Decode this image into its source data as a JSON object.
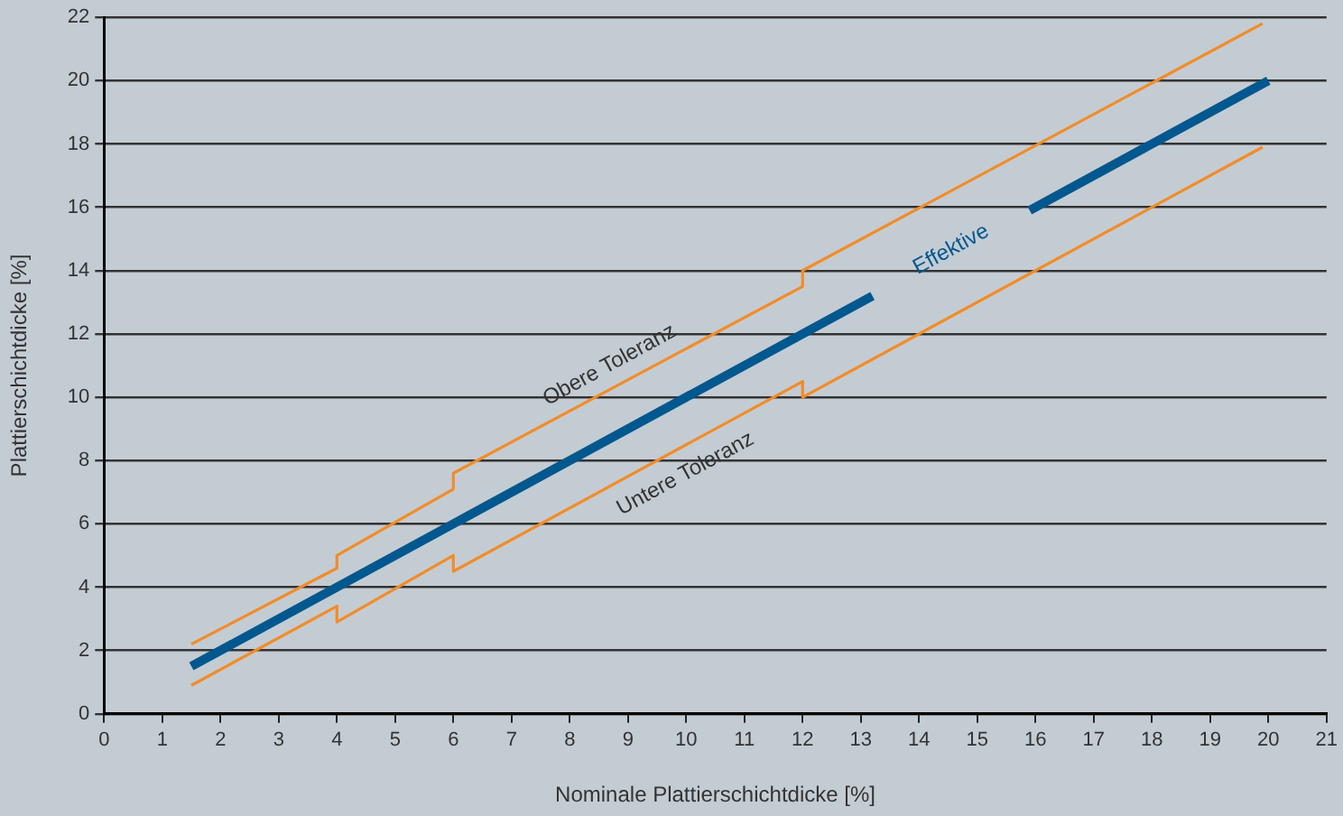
{
  "chart_data": {
    "type": "line",
    "xlabel": "Nominale Plattierschichtdicke [%]",
    "ylabel": "Plattierschichtdicke [%]",
    "xlim": [
      0,
      21
    ],
    "xticks": [
      0,
      1,
      2,
      3,
      4,
      5,
      6,
      7,
      8,
      9,
      10,
      11,
      12,
      13,
      14,
      15,
      16,
      17,
      18,
      19,
      20,
      21
    ],
    "ylim": [
      0,
      22
    ],
    "yticks": [
      0,
      2,
      4,
      6,
      8,
      10,
      12,
      14,
      16,
      18,
      20,
      22
    ],
    "grid": "y",
    "legend": false,
    "marker": "none",
    "series": [
      {
        "name": "Obere Toleranz",
        "color": "#f28c28",
        "x": [
          1.5,
          4,
          4,
          6,
          6,
          12,
          12,
          19.9
        ],
        "values": [
          2.2,
          4.6,
          5.0,
          7.1,
          7.6,
          13.5,
          14.0,
          21.8
        ]
      },
      {
        "name": "Untere Toleranz",
        "color": "#f28c28",
        "x": [
          1.5,
          4,
          4,
          6,
          6,
          12,
          12,
          19.9
        ],
        "values": [
          0.9,
          3.4,
          2.9,
          5.0,
          4.5,
          10.5,
          10.0,
          17.9
        ]
      },
      {
        "name": "Effektive",
        "color": "#00588f",
        "x": [
          1.5,
          13.2,
          null,
          15.9,
          20
        ],
        "values": [
          1.5,
          13.2,
          null,
          15.9,
          20
        ]
      }
    ]
  }
}
